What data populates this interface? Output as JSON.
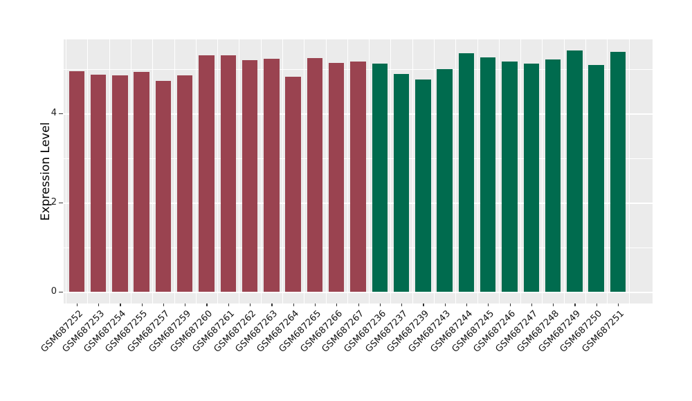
{
  "figure": {
    "background": "#FFFFFF",
    "title": ""
  },
  "chart_data": {
    "type": "bar",
    "title": "",
    "xlabel": "",
    "ylabel": "Expression Level",
    "ylim": [
      0,
      5.66
    ],
    "yticks": [
      0,
      2,
      4
    ],
    "yticks_minor": [
      1,
      3,
      5
    ],
    "grid": "on",
    "legend": "none",
    "panel_background": "#EBEBEB",
    "grid_color": "#FFFFFF",
    "tick_color": "#333333",
    "axis_text_color": "#111111",
    "group_colors": {
      "group1": "#9A4350",
      "group2": "#006B4E"
    },
    "categories": [
      "GSM687252",
      "GSM687253",
      "GSM687254",
      "GSM687255",
      "GSM687257",
      "GSM687259",
      "GSM687260",
      "GSM687261",
      "GSM687262",
      "GSM687263",
      "GSM687264",
      "GSM687265",
      "GSM687266",
      "GSM687267",
      "GSM687236",
      "GSM687237",
      "GSM687239",
      "GSM687243",
      "GSM687244",
      "GSM687245",
      "GSM687246",
      "GSM687247",
      "GSM687248",
      "GSM687249",
      "GSM687250",
      "GSM687251"
    ],
    "values": [
      4.94,
      4.87,
      4.85,
      4.93,
      4.73,
      4.85,
      5.31,
      5.3,
      5.2,
      5.23,
      4.82,
      5.24,
      5.13,
      5.16,
      5.11,
      4.89,
      4.76,
      4.99,
      5.35,
      5.26,
      5.16,
      5.12,
      5.21,
      5.41,
      5.09,
      5.38
    ],
    "group": [
      "group1",
      "group1",
      "group1",
      "group1",
      "group1",
      "group1",
      "group1",
      "group1",
      "group1",
      "group1",
      "group1",
      "group1",
      "group1",
      "group1",
      "group2",
      "group2",
      "group2",
      "group2",
      "group2",
      "group2",
      "group2",
      "group2",
      "group2",
      "group2",
      "group2",
      "group2"
    ]
  }
}
